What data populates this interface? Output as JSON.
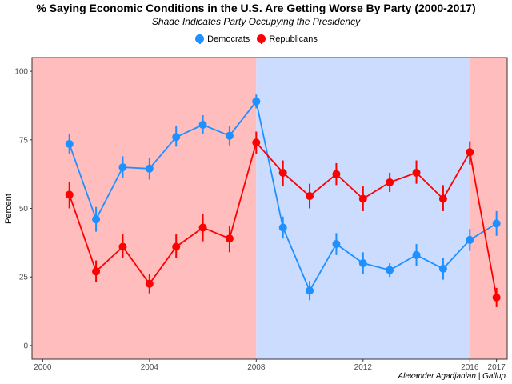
{
  "chart_data": {
    "type": "line",
    "title": "% Saying Economic Conditions in the U.S. Are Getting Worse By Party (2000-2017)",
    "subtitle": "Shade Indicates Party Occupying the Presidency",
    "xlabel": "",
    "ylabel": "Percent",
    "caption": "Alexander Agadjanian | Gallup",
    "xlim": [
      1999.6,
      2017.4
    ],
    "ylim": [
      -5,
      105
    ],
    "x_ticks": [
      2000,
      2004,
      2008,
      2012,
      2016,
      2017
    ],
    "y_ticks": [
      0,
      25,
      50,
      75,
      100
    ],
    "legend_position": "top",
    "grid": false,
    "shading": [
      {
        "from": 1999.6,
        "to": 2008,
        "party": "Republicans",
        "color": "#ffbdbd"
      },
      {
        "from": 2008,
        "to": 2016,
        "party": "Democrats",
        "color": "#cbdcff"
      },
      {
        "from": 2016,
        "to": 2017.4,
        "party": "Republicans",
        "color": "#ffbdbd"
      }
    ],
    "x": [
      2001,
      2002,
      2003,
      2004,
      2005,
      2006,
      2007,
      2008,
      2009,
      2010,
      2011,
      2012,
      2013,
      2014,
      2015,
      2016,
      2017
    ],
    "series": [
      {
        "name": "Democrats",
        "color": "#1e90ff",
        "values": [
          73.5,
          46,
          65,
          64.5,
          76,
          80.5,
          76.5,
          89,
          43,
          20,
          37,
          30,
          27.5,
          33,
          28,
          38.5,
          44.5
        ],
        "lower": [
          70,
          41.5,
          61,
          60.5,
          72.5,
          77,
          73,
          86.5,
          39,
          16.5,
          33,
          26,
          25,
          29,
          24,
          34.5,
          40
        ],
        "upper": [
          77,
          50.5,
          69,
          68.5,
          80,
          84,
          80,
          91.5,
          47,
          23.5,
          41,
          34,
          30,
          37,
          32,
          42.5,
          49
        ]
      },
      {
        "name": "Republicans",
        "color": "#ff0000",
        "values": [
          55,
          27,
          36,
          22.5,
          36,
          43,
          39,
          74,
          63,
          54.5,
          62.5,
          53.5,
          59.5,
          63,
          53.5,
          70.5,
          17.5
        ],
        "lower": [
          50,
          23,
          32,
          19,
          32,
          38,
          34,
          70,
          58,
          50,
          58.5,
          49,
          56,
          59,
          49,
          66,
          14
        ],
        "upper": [
          59.5,
          31,
          40.5,
          26,
          40.5,
          48,
          43.5,
          78,
          67.5,
          59,
          66.5,
          58,
          63,
          67.5,
          58.5,
          74.5,
          21
        ]
      }
    ]
  }
}
